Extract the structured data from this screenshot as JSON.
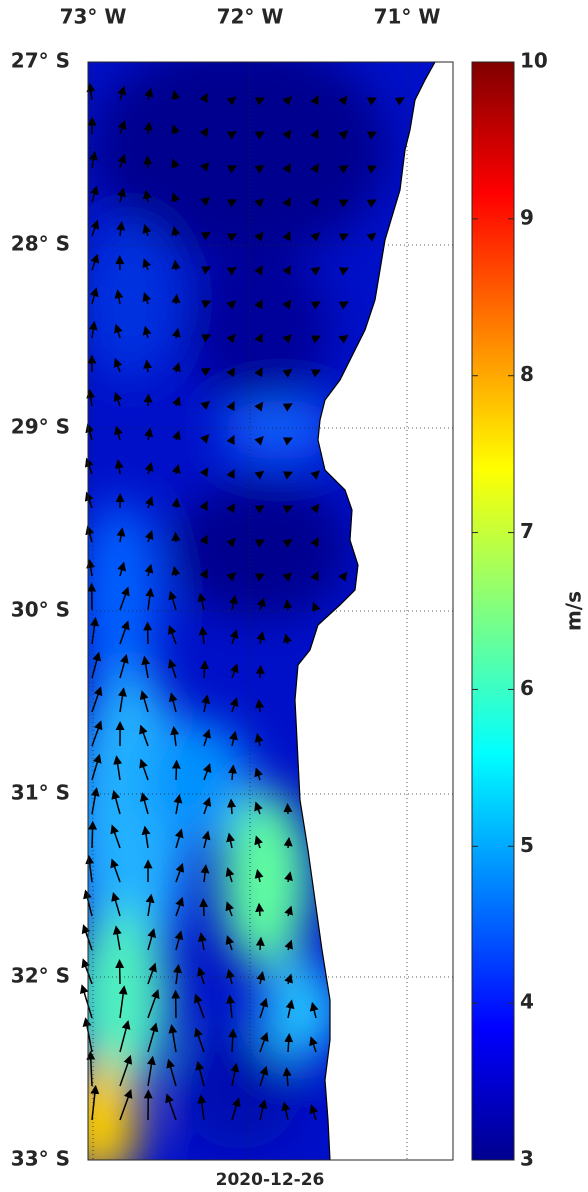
{
  "map": {
    "lon_labels": [
      "73° W",
      "72° W",
      "71° W"
    ],
    "lat_labels": [
      "27° S",
      "28° S",
      "29° S",
      "30° S",
      "31° S",
      "32° S",
      "33° S"
    ],
    "date": "2020-12-26",
    "colorbar": {
      "range": [
        3,
        10
      ],
      "ticks": [
        3,
        4,
        5,
        6,
        7,
        8,
        9,
        10
      ],
      "label": "m/s"
    }
  }
}
